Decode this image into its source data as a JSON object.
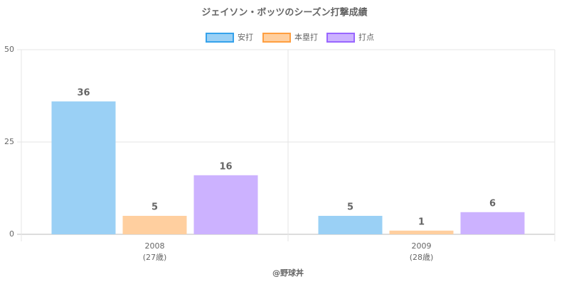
{
  "chart_data": {
    "type": "bar",
    "title": "ジェイソン・ボッツのシーズン打撃成績",
    "categories": [
      "2008",
      "2009"
    ],
    "category_sublabels": [
      "(27歳)",
      "(28歳)"
    ],
    "series": [
      {
        "name": "安打",
        "color": "#9ad0f5",
        "border": "#36a2eb",
        "values": [
          36,
          5
        ]
      },
      {
        "name": "本塁打",
        "color": "#ffcf9f",
        "border": "#ff9f40",
        "values": [
          5,
          1
        ]
      },
      {
        "name": "打点",
        "color": "#ccb2ff",
        "border": "#9966ff",
        "values": [
          16,
          6
        ]
      }
    ],
    "ylim": [
      0,
      50
    ],
    "yticks": [
      0,
      25,
      50
    ],
    "grid": true,
    "legend": "top",
    "footer": "@野球丼"
  }
}
